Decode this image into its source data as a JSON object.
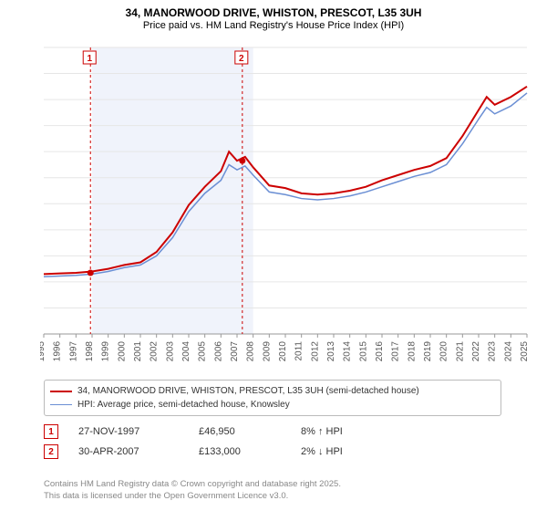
{
  "title_line1": "34, MANORWOOD DRIVE, WHISTON, PRESCOT, L35 3UH",
  "title_line2": "Price paid vs. HM Land Registry's House Price Index (HPI)",
  "chart": {
    "type": "line",
    "x_years_start": 1995,
    "x_years_end": 2025,
    "ylim": [
      0,
      220000
    ],
    "ytick_step": 20000,
    "y_prefix": "£",
    "y_suffix": "K",
    "background_color": "#ffffff",
    "grid_color": "#e6e6e6",
    "highlight_band_color": "#f0f3fb",
    "highlight_band_years": [
      1998,
      2008
    ],
    "series": {
      "property": {
        "color": "#cc0000",
        "width": 2,
        "label": "34, MANORWOOD DRIVE, WHISTON, PRESCOT, L35 3UH (semi-detached house)",
        "points": [
          [
            1995,
            46000
          ],
          [
            1996,
            46500
          ],
          [
            1997,
            46950
          ],
          [
            1998,
            48000
          ],
          [
            1999,
            50000
          ],
          [
            2000,
            53000
          ],
          [
            2001,
            55000
          ],
          [
            2002,
            63000
          ],
          [
            2003,
            78000
          ],
          [
            2004,
            99000
          ],
          [
            2005,
            113000
          ],
          [
            2006,
            125000
          ],
          [
            2006.5,
            140000
          ],
          [
            2007,
            133000
          ],
          [
            2007.5,
            136000
          ],
          [
            2008,
            128000
          ],
          [
            2009,
            114000
          ],
          [
            2010,
            112000
          ],
          [
            2011,
            108000
          ],
          [
            2012,
            107000
          ],
          [
            2013,
            108000
          ],
          [
            2014,
            110000
          ],
          [
            2015,
            113000
          ],
          [
            2016,
            118000
          ],
          [
            2017,
            122000
          ],
          [
            2018,
            126000
          ],
          [
            2019,
            129000
          ],
          [
            2020,
            135000
          ],
          [
            2021,
            152000
          ],
          [
            2022,
            172000
          ],
          [
            2022.5,
            182000
          ],
          [
            2023,
            176000
          ],
          [
            2024,
            182000
          ],
          [
            2025,
            190000
          ]
        ]
      },
      "hpi": {
        "color": "#6b8fd4",
        "width": 1.5,
        "label": "HPI: Average price, semi-detached house, Knowsley",
        "points": [
          [
            1995,
            44000
          ],
          [
            1996,
            44500
          ],
          [
            1997,
            45000
          ],
          [
            1998,
            46000
          ],
          [
            1999,
            48000
          ],
          [
            2000,
            51000
          ],
          [
            2001,
            53000
          ],
          [
            2002,
            60000
          ],
          [
            2003,
            74000
          ],
          [
            2004,
            94000
          ],
          [
            2005,
            108000
          ],
          [
            2006,
            118000
          ],
          [
            2006.5,
            130000
          ],
          [
            2007,
            126000
          ],
          [
            2007.5,
            129000
          ],
          [
            2008,
            122000
          ],
          [
            2009,
            109000
          ],
          [
            2010,
            107000
          ],
          [
            2011,
            104000
          ],
          [
            2012,
            103000
          ],
          [
            2013,
            104000
          ],
          [
            2014,
            106000
          ],
          [
            2015,
            109000
          ],
          [
            2016,
            113000
          ],
          [
            2017,
            117000
          ],
          [
            2018,
            121000
          ],
          [
            2019,
            124000
          ],
          [
            2020,
            130000
          ],
          [
            2021,
            146000
          ],
          [
            2022,
            165000
          ],
          [
            2022.5,
            174000
          ],
          [
            2023,
            169000
          ],
          [
            2024,
            175000
          ],
          [
            2025,
            185000
          ]
        ]
      }
    },
    "sale_markers": [
      {
        "n": "1",
        "year": 1997.9,
        "value": 46950
      },
      {
        "n": "2",
        "year": 2007.33,
        "value": 133000
      }
    ]
  },
  "legend": {
    "line1_label": "34, MANORWOOD DRIVE, WHISTON, PRESCOT, L35 3UH (semi-detached house)",
    "line2_label": "HPI: Average price, semi-detached house, Knowsley"
  },
  "sales": [
    {
      "n": "1",
      "date": "27-NOV-1997",
      "price": "£46,950",
      "delta": "8% ↑ HPI"
    },
    {
      "n": "2",
      "date": "30-APR-2007",
      "price": "£133,000",
      "delta": "2% ↓ HPI"
    }
  ],
  "footer1": "Contains HM Land Registry data © Crown copyright and database right 2025.",
  "footer2": "This data is licensed under the Open Government Licence v3.0."
}
